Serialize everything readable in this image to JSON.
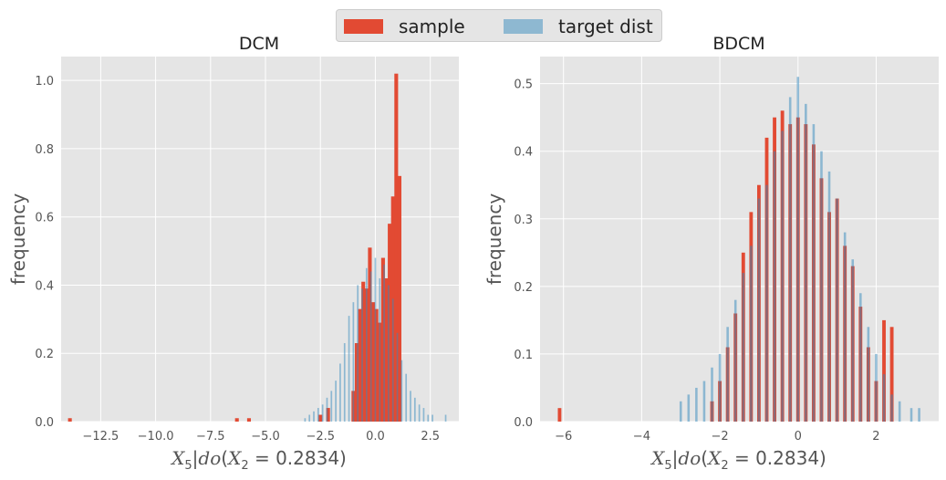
{
  "legend": {
    "entries": [
      {
        "label": "sample",
        "color": "#e24a33"
      },
      {
        "label": "target dist",
        "color": "#8eb8d1"
      }
    ]
  },
  "style": {
    "panel_background": "#e5e5e5",
    "grid_color": "#ffffff",
    "sample_color": "#e24a33",
    "target_color": "#348abd",
    "overlap_color": "#8a6575"
  },
  "chart_data": [
    {
      "type": "histogram",
      "title": "DCM",
      "xlabel": "X_5|do(X_2=0.2834)",
      "ylabel": "frequency",
      "xlim": [
        -14.3,
        3.8
      ],
      "ylim": [
        0,
        1.07
      ],
      "xticks": [
        -12.5,
        -10.0,
        -7.5,
        -5.0,
        -2.5,
        0.0,
        2.5
      ],
      "xtick_labels": [
        "−12.5",
        "−10.0",
        "−7.5",
        "−5.0",
        "−2.5",
        "0.0",
        "2.5"
      ],
      "yticks": [
        0.0,
        0.2,
        0.4,
        0.6,
        0.8,
        1.0
      ],
      "ytick_labels": [
        "0.0",
        "0.2",
        "0.4",
        "0.6",
        "0.8",
        "1.0"
      ],
      "grid": true,
      "series": [
        {
          "name": "sample",
          "bin_width": 0.17,
          "x": [
            -13.9,
            -6.3,
            -5.75,
            -2.5,
            -2.15,
            -1.0,
            -0.85,
            -0.7,
            -0.55,
            -0.4,
            -0.25,
            -0.1,
            0.05,
            0.2,
            0.35,
            0.5,
            0.65,
            0.8,
            0.95,
            1.1
          ],
          "y": [
            0.01,
            0.01,
            0.01,
            0.02,
            0.04,
            0.09,
            0.23,
            0.33,
            0.41,
            0.39,
            0.51,
            0.35,
            0.33,
            0.29,
            0.48,
            0.42,
            0.58,
            0.66,
            1.02,
            0.72
          ]
        },
        {
          "name": "target dist",
          "bin_width": 0.07,
          "x": [
            -3.2,
            -3.0,
            -2.8,
            -2.6,
            -2.4,
            -2.2,
            -2.0,
            -1.8,
            -1.6,
            -1.4,
            -1.2,
            -1.0,
            -0.8,
            -0.6,
            -0.4,
            -0.2,
            0.0,
            0.2,
            0.4,
            0.6,
            0.8,
            1.0,
            1.2,
            1.4,
            1.6,
            1.8,
            2.0,
            2.2,
            2.4,
            2.6,
            3.2
          ],
          "y": [
            0.01,
            0.02,
            0.03,
            0.04,
            0.05,
            0.07,
            0.09,
            0.12,
            0.17,
            0.23,
            0.31,
            0.35,
            0.4,
            0.39,
            0.45,
            0.44,
            0.48,
            0.42,
            0.46,
            0.4,
            0.36,
            0.26,
            0.18,
            0.14,
            0.09,
            0.07,
            0.05,
            0.04,
            0.02,
            0.02,
            0.02
          ]
        }
      ]
    },
    {
      "type": "histogram",
      "title": "BDCM",
      "xlabel": "X_5|do(X_2=0.2834)",
      "ylabel": "frequency",
      "xlim": [
        -6.6,
        3.6
      ],
      "ylim": [
        0,
        0.54
      ],
      "xticks": [
        -6,
        -4,
        -2,
        0,
        2
      ],
      "xtick_labels": [
        "−6",
        "−4",
        "−2",
        "0",
        "2"
      ],
      "yticks": [
        0.0,
        0.1,
        0.2,
        0.3,
        0.4,
        0.5
      ],
      "ytick_labels": [
        "0.0",
        "0.1",
        "0.2",
        "0.3",
        "0.4",
        "0.5"
      ],
      "grid": true,
      "series": [
        {
          "name": "sample",
          "bin_width": 0.09,
          "x": [
            -6.1,
            -2.2,
            -2.0,
            -1.8,
            -1.6,
            -1.4,
            -1.2,
            -1.0,
            -0.8,
            -0.6,
            -0.4,
            -0.2,
            0.0,
            0.2,
            0.4,
            0.6,
            0.8,
            1.0,
            1.2,
            1.4,
            1.6,
            1.8,
            2.0,
            2.2,
            2.4
          ],
          "y": [
            0.02,
            0.03,
            0.06,
            0.11,
            0.16,
            0.25,
            0.31,
            0.35,
            0.42,
            0.45,
            0.46,
            0.44,
            0.45,
            0.44,
            0.41,
            0.36,
            0.31,
            0.33,
            0.26,
            0.23,
            0.17,
            0.11,
            0.06,
            0.15,
            0.14
          ]
        },
        {
          "name": "target dist",
          "bin_width": 0.06,
          "x": [
            -3.0,
            -2.8,
            -2.6,
            -2.4,
            -2.2,
            -2.0,
            -1.8,
            -1.6,
            -1.4,
            -1.2,
            -1.0,
            -0.8,
            -0.6,
            -0.4,
            -0.2,
            0.0,
            0.2,
            0.4,
            0.6,
            0.8,
            1.0,
            1.2,
            1.4,
            1.6,
            1.8,
            2.0,
            2.2,
            2.4,
            2.6,
            2.9,
            3.1
          ],
          "y": [
            0.03,
            0.04,
            0.05,
            0.06,
            0.08,
            0.1,
            0.14,
            0.18,
            0.22,
            0.26,
            0.33,
            0.35,
            0.4,
            0.43,
            0.48,
            0.51,
            0.47,
            0.44,
            0.4,
            0.37,
            0.33,
            0.28,
            0.24,
            0.19,
            0.14,
            0.1,
            0.07,
            0.04,
            0.03,
            0.02,
            0.02
          ]
        }
      ]
    }
  ]
}
